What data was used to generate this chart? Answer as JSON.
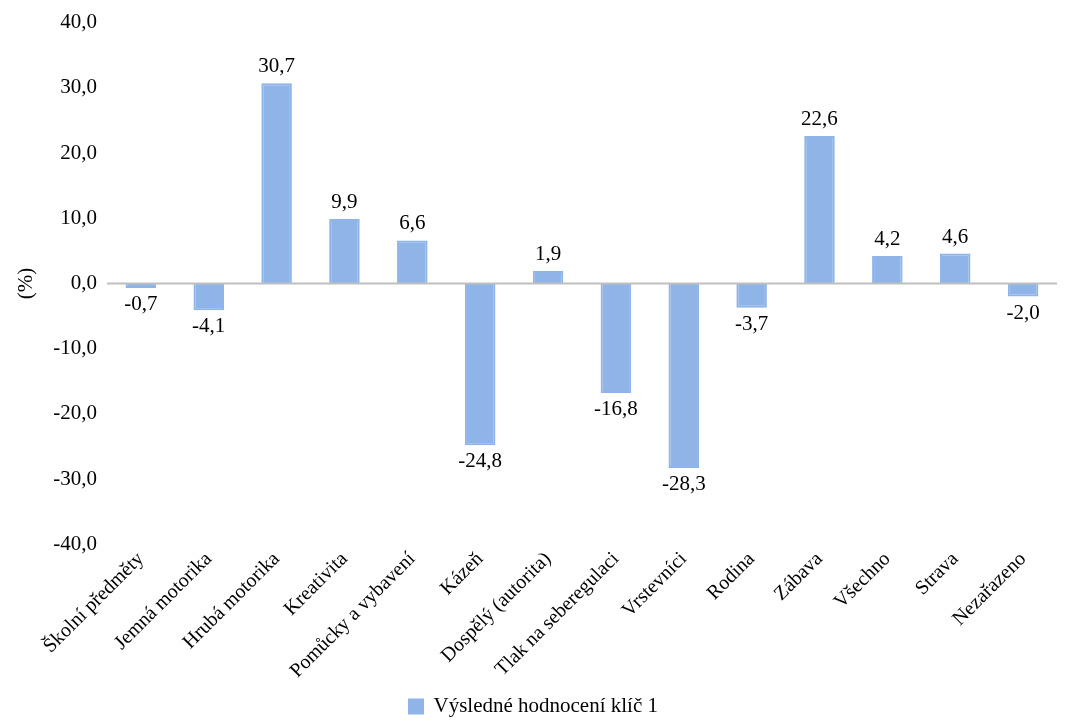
{
  "chart_data": {
    "type": "bar",
    "ylabel": "(%)",
    "categories": [
      "Školní předměty",
      "Jemná motorika",
      "Hrubá motorika",
      "Kreativita",
      "Pomůcky a vybavení",
      "Kázeň",
      "Dospělý (autorita)",
      "Tlak na seberegulaci",
      "Vrstevníci",
      "Rodina",
      "Zábava",
      "Všechno",
      "Strava",
      "Nezařazeno"
    ],
    "series": [
      {
        "name": "Výsledné hodnocení klíč 1",
        "color": "#8fb4e8",
        "values": [
          -0.7,
          -4.1,
          30.7,
          9.9,
          6.6,
          -24.8,
          1.9,
          -16.8,
          -28.3,
          -3.7,
          22.6,
          4.2,
          4.6,
          -2.0
        ],
        "value_labels": [
          "-0,7",
          "-4,1",
          "30,7",
          "9,9",
          "6,6",
          "-24,8",
          "1,9",
          "-16,8",
          "-28,3",
          "-3,7",
          "22,6",
          "4,2",
          "4,6",
          "-2,0"
        ]
      }
    ],
    "ref_lines": [
      {
        "axis": "y",
        "value": 0,
        "color": "#bfbfbf"
      }
    ],
    "ylim": [
      -40,
      40
    ],
    "yticks": [
      {
        "value": -40,
        "label": "-40,0"
      },
      {
        "value": -30,
        "label": "-30,0"
      },
      {
        "value": -20,
        "label": "-20,0"
      },
      {
        "value": -10,
        "label": "-10,0"
      },
      {
        "value": 0,
        "label": "0,0"
      },
      {
        "value": 10,
        "label": "10,0"
      },
      {
        "value": 20,
        "label": "20,0"
      },
      {
        "value": 30,
        "label": "30,0"
      },
      {
        "value": 40,
        "label": "40,0"
      }
    ],
    "legend": "bottom"
  }
}
